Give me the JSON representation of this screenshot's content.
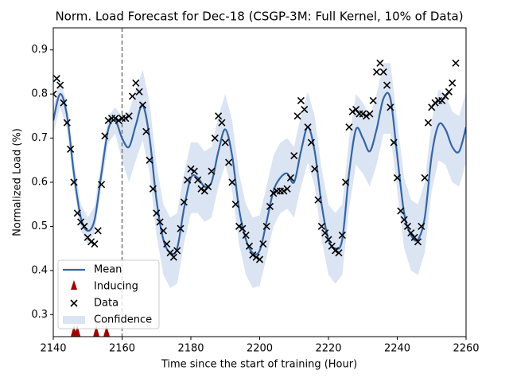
{
  "chart_data": {
    "type": "gp-forecast",
    "title": "Norm. Load Forecast for Dec-18 (CSGP-3M: Full Kernel, 10% of Data)",
    "x_label": "Time since the start of training (Hour)",
    "y_label": "Normalized Load (%)",
    "xlim": [
      2140,
      2260
    ],
    "ylim": [
      0.25,
      0.95
    ],
    "xticks": [
      2140,
      2160,
      2180,
      2200,
      2220,
      2240,
      2260
    ],
    "yticks": [
      0.3,
      0.4,
      0.5,
      0.6,
      0.7,
      0.8,
      0.9
    ],
    "vline": 2160,
    "legend": "lower left",
    "mean": {
      "name": "Mean",
      "color": "#3465a4",
      "x": [
        2140,
        2142,
        2144,
        2146,
        2148,
        2150,
        2152,
        2154,
        2156,
        2158,
        2160,
        2162,
        2164,
        2166,
        2168,
        2170,
        2172,
        2174,
        2176,
        2178,
        2180,
        2182,
        2184,
        2186,
        2188,
        2190,
        2192,
        2194,
        2196,
        2198,
        2200,
        2202,
        2204,
        2206,
        2208,
        2210,
        2212,
        2214,
        2216,
        2218,
        2220,
        2222,
        2224,
        2226,
        2228,
        2230,
        2232,
        2234,
        2236,
        2238,
        2240,
        2242,
        2244,
        2246,
        2248,
        2250,
        2252,
        2254,
        2256,
        2258,
        2260
      ],
      "values": [
        0.74,
        0.8,
        0.75,
        0.62,
        0.52,
        0.49,
        0.515,
        0.62,
        0.72,
        0.74,
        0.7,
        0.68,
        0.73,
        0.775,
        0.7,
        0.56,
        0.47,
        0.44,
        0.45,
        0.54,
        0.61,
        0.61,
        0.59,
        0.6,
        0.67,
        0.72,
        0.66,
        0.54,
        0.47,
        0.44,
        0.445,
        0.51,
        0.58,
        0.61,
        0.62,
        0.6,
        0.67,
        0.725,
        0.67,
        0.55,
        0.47,
        0.45,
        0.47,
        0.62,
        0.72,
        0.7,
        0.67,
        0.72,
        0.79,
        0.79,
        0.66,
        0.53,
        0.48,
        0.47,
        0.52,
        0.66,
        0.73,
        0.72,
        0.68,
        0.67,
        0.725
      ]
    },
    "confidence": {
      "name": "Confidence",
      "color": "#dbe4f3",
      "lower": [
        0.71,
        0.77,
        0.72,
        0.59,
        0.49,
        0.46,
        0.485,
        0.59,
        0.69,
        0.71,
        0.65,
        0.6,
        0.65,
        0.695,
        0.62,
        0.48,
        0.39,
        0.36,
        0.37,
        0.46,
        0.53,
        0.53,
        0.51,
        0.52,
        0.59,
        0.64,
        0.58,
        0.46,
        0.39,
        0.36,
        0.365,
        0.43,
        0.5,
        0.53,
        0.54,
        0.52,
        0.59,
        0.645,
        0.59,
        0.47,
        0.39,
        0.37,
        0.39,
        0.54,
        0.64,
        0.62,
        0.59,
        0.64,
        0.71,
        0.71,
        0.58,
        0.45,
        0.4,
        0.39,
        0.44,
        0.58,
        0.65,
        0.64,
        0.6,
        0.59,
        0.645
      ],
      "upper": [
        0.77,
        0.83,
        0.78,
        0.65,
        0.55,
        0.52,
        0.545,
        0.65,
        0.75,
        0.77,
        0.75,
        0.76,
        0.81,
        0.855,
        0.78,
        0.64,
        0.55,
        0.52,
        0.53,
        0.62,
        0.69,
        0.69,
        0.67,
        0.68,
        0.75,
        0.8,
        0.74,
        0.62,
        0.55,
        0.52,
        0.525,
        0.59,
        0.66,
        0.69,
        0.7,
        0.68,
        0.75,
        0.805,
        0.75,
        0.63,
        0.55,
        0.53,
        0.55,
        0.7,
        0.8,
        0.78,
        0.75,
        0.8,
        0.87,
        0.87,
        0.74,
        0.61,
        0.56,
        0.55,
        0.6,
        0.74,
        0.81,
        0.8,
        0.76,
        0.75,
        0.805
      ]
    },
    "data": {
      "name": "Data",
      "color": "#000000",
      "x": [
        2140,
        2141,
        2142,
        2143,
        2144,
        2145,
        2146,
        2147,
        2148,
        2149,
        2150,
        2151,
        2152,
        2153,
        2154,
        2155,
        2156,
        2157,
        2158,
        2159,
        2160,
        2161,
        2162,
        2163,
        2164,
        2165,
        2166,
        2167,
        2168,
        2169,
        2170,
        2171,
        2172,
        2173,
        2174,
        2175,
        2176,
        2177,
        2178,
        2179,
        2180,
        2181,
        2182,
        2183,
        2184,
        2185,
        2186,
        2187,
        2188,
        2189,
        2190,
        2191,
        2192,
        2193,
        2194,
        2195,
        2196,
        2197,
        2198,
        2199,
        2200,
        2201,
        2202,
        2203,
        2204,
        2205,
        2206,
        2207,
        2208,
        2209,
        2210,
        2211,
        2212,
        2213,
        2214,
        2215,
        2216,
        2217,
        2218,
        2219,
        2220,
        2221,
        2222,
        2223,
        2224,
        2225,
        2226,
        2227,
        2228,
        2229,
        2230,
        2231,
        2232,
        2233,
        2234,
        2235,
        2236,
        2237,
        2238,
        2239,
        2240,
        2241,
        2242,
        2243,
        2244,
        2245,
        2246,
        2247,
        2248,
        2249,
        2250,
        2251,
        2252,
        2253,
        2254,
        2255,
        2256,
        2257
      ],
      "values": [
        0.8,
        0.835,
        0.82,
        0.78,
        0.735,
        0.675,
        0.6,
        0.53,
        0.51,
        0.5,
        0.475,
        0.465,
        0.46,
        0.49,
        0.595,
        0.705,
        0.74,
        0.745,
        0.745,
        0.74,
        0.745,
        0.745,
        0.75,
        0.795,
        0.825,
        0.805,
        0.775,
        0.715,
        0.65,
        0.585,
        0.53,
        0.51,
        0.49,
        0.46,
        0.44,
        0.43,
        0.445,
        0.495,
        0.555,
        0.605,
        0.63,
        0.625,
        0.605,
        0.585,
        0.58,
        0.59,
        0.625,
        0.7,
        0.75,
        0.735,
        0.69,
        0.645,
        0.6,
        0.55,
        0.5,
        0.495,
        0.48,
        0.455,
        0.435,
        0.43,
        0.425,
        0.46,
        0.5,
        0.545,
        0.575,
        0.58,
        0.58,
        0.58,
        0.585,
        0.61,
        0.66,
        0.75,
        0.785,
        0.765,
        0.725,
        0.69,
        0.63,
        0.56,
        0.5,
        0.485,
        0.47,
        0.455,
        0.445,
        0.44,
        0.48,
        0.6,
        0.725,
        0.76,
        0.765,
        0.755,
        0.755,
        0.75,
        0.755,
        0.785,
        0.85,
        0.87,
        0.85,
        0.82,
        0.77,
        0.69,
        0.61,
        0.535,
        0.515,
        0.5,
        0.485,
        0.475,
        0.465,
        0.5,
        0.61,
        0.735,
        0.77,
        0.78,
        0.785,
        0.785,
        0.795,
        0.805,
        0.825,
        0.87
      ]
    },
    "inducing": {
      "name": "Inducing",
      "color": "#a00000",
      "x": [
        2146,
        2147,
        2152.5,
        2155.5
      ],
      "values": [
        0.25,
        0.25,
        0.25,
        0.25
      ]
    }
  }
}
